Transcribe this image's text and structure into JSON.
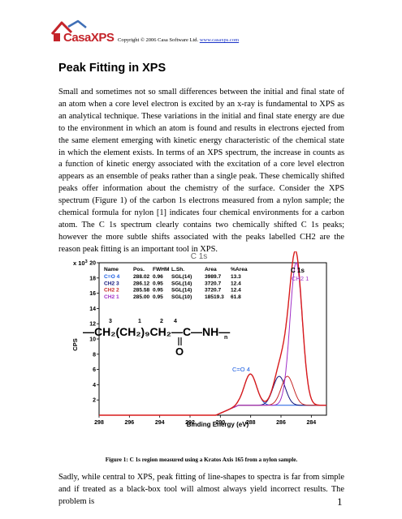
{
  "header": {
    "logo_text": "CasaXPS",
    "copyright": "Copyright © 2006 Casa Software Ltd. ",
    "copyright_link": "www.casaxps.com"
  },
  "title": "Peak Fitting in XPS",
  "intro_paragraph": "Small and sometimes not so small differences between the initial and final state of an atom when a core level electron is excited by an x-ray is fundamental to XPS as an analytical technique. These variations in the initial and final state energy are due to the environment in which an atom is found and results in electrons ejected from the same element emerging with kinetic energy characteristic of the chemical state in which the element exists. In terms of an XPS spectrum, the increase in counts as a function of kinetic energy associated with the excitation of a core level electron appears as an ensemble of peaks rather than a single peak. These chemically shifted peaks offer information about the chemistry of the surface. Consider the XPS spectrum (Figure 1) of the carbon 1s electrons measured from a nylon sample; the chemical formula for nylon [1] indicates four chemical environments for a carbon atom. The C 1s spectrum clearly contains two chemically shifted C 1s peaks; however the more subtle shifts associated with the peaks labelled CH2 are the reason peak fitting is an important tool in XPS.",
  "figure": {
    "top_title": "C 1s",
    "scale_label": "x 10",
    "scale_exp": "3",
    "y_axis_label": "CPS",
    "x_axis_label": "Binding Energy (eV)",
    "peak_label": "C 1s",
    "ch2_label": "CH2 1",
    "co_label": "C=O 4",
    "formula": {
      "main": "—CH₂(CH₂)₉CH₂—C—NH—",
      "sub_n": "n",
      "num3": "3",
      "num2": "2",
      "num4": "4",
      "num1": "1",
      "oxygen": "O"
    },
    "table": {
      "headers": [
        "Name",
        "Pos.",
        "FWHM",
        "L.Sh.",
        "Area",
        "%Area"
      ],
      "rows": [
        {
          "name": "C=O 4",
          "pos": "288.02",
          "fwhm": "0.96",
          "lsh": "SGL(14)",
          "area": "3989.7",
          "pct": "13.3",
          "color": "#1a5ce0"
        },
        {
          "name": "CH2 3",
          "pos": "286.12",
          "fwhm": "0.95",
          "lsh": "SGL(14)",
          "area": "3720.7",
          "pct": "12.4",
          "color": "#10127a"
        },
        {
          "name": "CH2 2",
          "pos": "285.58",
          "fwhm": "0.95",
          "lsh": "SGL(14)",
          "area": "3720.7",
          "pct": "12.4",
          "color": "#c62828"
        },
        {
          "name": "CH2 1",
          "pos": "285.00",
          "fwhm": "0.95",
          "lsh": "SGL(10)",
          "area": "18519.3",
          "pct": "61.8",
          "color": "#a030c8"
        }
      ]
    },
    "caption": "Figure 1: C 1s region measured using a Kratos Axis 165 from a nylon sample."
  },
  "chart_data": {
    "type": "line",
    "title": "C 1s",
    "xlabel": "Binding Energy (eV)",
    "ylabel": "CPS",
    "x_reversed": true,
    "xlim": [
      298,
      283
    ],
    "ylim": [
      0,
      20000
    ],
    "y_scale_label": "x 10^3",
    "x_ticks": [
      298,
      296,
      294,
      292,
      290,
      288,
      286,
      284
    ],
    "y_ticks": [
      2,
      4,
      6,
      8,
      10,
      12,
      14,
      16,
      18,
      20
    ],
    "background_cps": 1300,
    "components": [
      {
        "name": "C=O 4",
        "position": 288.02,
        "fwhm": 0.96,
        "height": 4100,
        "color": "#1a5ce0"
      },
      {
        "name": "CH2 3",
        "position": 286.12,
        "fwhm": 0.95,
        "height": 3800,
        "color": "#10127a"
      },
      {
        "name": "CH2 2",
        "position": 285.58,
        "fwhm": 0.95,
        "height": 3800,
        "color": "#c62828"
      },
      {
        "name": "CH2 1",
        "position": 285.0,
        "fwhm": 0.95,
        "height": 18700,
        "color": "#a030c8"
      }
    ],
    "envelope_color": "#d81b1b"
  },
  "bottom_paragraph": "Sadly, while central to XPS, peak fitting of line-shapes to spectra is far from simple and if treated as a black-box tool will almost always yield incorrect results. The problem is",
  "page_number": "1"
}
